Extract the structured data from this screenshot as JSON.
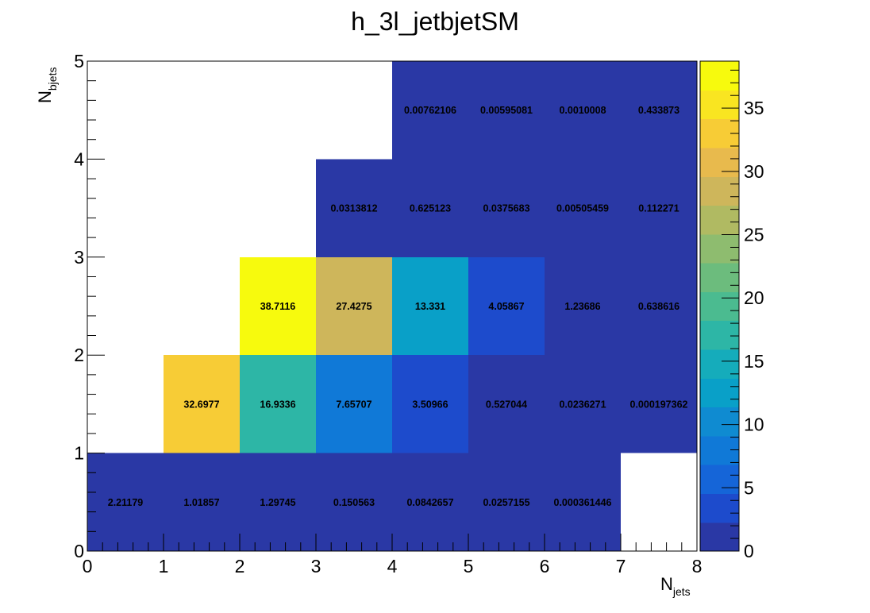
{
  "chart_data": {
    "type": "heatmap",
    "title": "h_3l_jetbjetSM",
    "xlabel": "N",
    "xlabel_sub": "jets",
    "ylabel": "N",
    "ylabel_sub": "bjets",
    "xlim": [
      0,
      8
    ],
    "ylim": [
      0,
      5
    ],
    "x_ticks": [
      "0",
      "1",
      "2",
      "3",
      "4",
      "5",
      "6",
      "7",
      "8"
    ],
    "y_ticks": [
      "0",
      "1",
      "2",
      "3",
      "4",
      "5"
    ],
    "colorbar": {
      "min": 0,
      "max": 38.7116,
      "ticks": [
        "0",
        "5",
        "10",
        "15",
        "20",
        "25",
        "30",
        "35"
      ],
      "tick_values": [
        0,
        5,
        10,
        15,
        20,
        25,
        30,
        35
      ],
      "palette": [
        "#2a38a5",
        "#1d4bcc",
        "#1565d8",
        "#1079d7",
        "#0f8bd1",
        "#09a0c8",
        "#15acbb",
        "#2db6a6",
        "#4bbb90",
        "#6cbc7d",
        "#8ebc6f",
        "#b0ba62",
        "#ceb65b",
        "#e8ba4d",
        "#f7cc36",
        "#f9e521",
        "#f7fa0d"
      ]
    },
    "cells": [
      {
        "x": 0,
        "y": 0,
        "value": 2.21179,
        "label": "2.21179"
      },
      {
        "x": 1,
        "y": 0,
        "value": 1.01857,
        "label": "1.01857"
      },
      {
        "x": 2,
        "y": 0,
        "value": 1.29745,
        "label": "1.29745"
      },
      {
        "x": 3,
        "y": 0,
        "value": 0.150563,
        "label": "0.150563"
      },
      {
        "x": 4,
        "y": 0,
        "value": 0.0842657,
        "label": "0.0842657"
      },
      {
        "x": 5,
        "y": 0,
        "value": 0.0257155,
        "label": "0.0257155"
      },
      {
        "x": 6,
        "y": 0,
        "value": 0.000361446,
        "label": "0.000361446"
      },
      {
        "x": 1,
        "y": 1,
        "value": 32.6977,
        "label": "32.6977"
      },
      {
        "x": 2,
        "y": 1,
        "value": 16.9336,
        "label": "16.9336"
      },
      {
        "x": 3,
        "y": 1,
        "value": 7.65707,
        "label": "7.65707"
      },
      {
        "x": 4,
        "y": 1,
        "value": 3.50966,
        "label": "3.50966"
      },
      {
        "x": 5,
        "y": 1,
        "value": 0.527044,
        "label": "0.527044"
      },
      {
        "x": 6,
        "y": 1,
        "value": 0.0236271,
        "label": "0.0236271"
      },
      {
        "x": 7,
        "y": 1,
        "value": 0.000197362,
        "label": "0.000197362"
      },
      {
        "x": 2,
        "y": 2,
        "value": 38.7116,
        "label": "38.7116"
      },
      {
        "x": 3,
        "y": 2,
        "value": 27.4275,
        "label": "27.4275"
      },
      {
        "x": 4,
        "y": 2,
        "value": 13.331,
        "label": "13.331"
      },
      {
        "x": 5,
        "y": 2,
        "value": 4.05867,
        "label": "4.05867"
      },
      {
        "x": 6,
        "y": 2,
        "value": 1.23686,
        "label": "1.23686"
      },
      {
        "x": 7,
        "y": 2,
        "value": 0.638616,
        "label": "0.638616"
      },
      {
        "x": 3,
        "y": 3,
        "value": 0.0313812,
        "label": "0.0313812"
      },
      {
        "x": 4,
        "y": 3,
        "value": 0.625123,
        "label": "0.625123"
      },
      {
        "x": 5,
        "y": 3,
        "value": 0.0375683,
        "label": "0.0375683"
      },
      {
        "x": 6,
        "y": 3,
        "value": 0.00505459,
        "label": "0.00505459"
      },
      {
        "x": 7,
        "y": 3,
        "value": 0.112271,
        "label": "0.112271"
      },
      {
        "x": 4,
        "y": 4,
        "value": 0.00762106,
        "label": "0.00762106"
      },
      {
        "x": 5,
        "y": 4,
        "value": 0.00595081,
        "label": "0.00595081"
      },
      {
        "x": 6,
        "y": 4,
        "value": 0.0010008,
        "label": "0.0010008"
      },
      {
        "x": 7,
        "y": 4,
        "value": 0.433873,
        "label": "0.433873"
      }
    ],
    "grid": false,
    "legend": "colorbar-right"
  }
}
